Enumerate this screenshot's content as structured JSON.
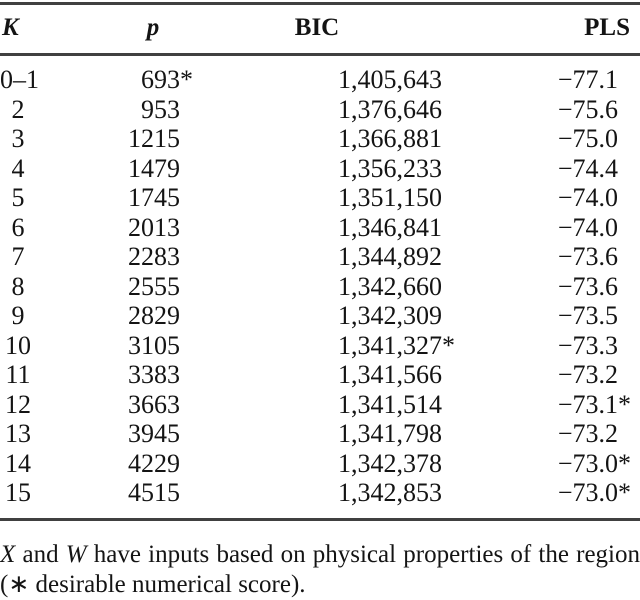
{
  "table": {
    "headers": {
      "k": "K",
      "p": "p",
      "bic": "BIC",
      "pls": "PLS"
    },
    "rows": [
      {
        "k": "0–1",
        "p": "693*",
        "bic": "1,405,643",
        "pls": "−77.1"
      },
      {
        "k": "2",
        "p": "953",
        "bic": "1,376,646",
        "pls": "−75.6"
      },
      {
        "k": "3",
        "p": "1215",
        "bic": "1,366,881",
        "pls": "−75.0"
      },
      {
        "k": "4",
        "p": "1479",
        "bic": "1,356,233",
        "pls": "−74.4"
      },
      {
        "k": "5",
        "p": "1745",
        "bic": "1,351,150",
        "pls": "−74.0"
      },
      {
        "k": "6",
        "p": "2013",
        "bic": "1,346,841",
        "pls": "−74.0"
      },
      {
        "k": "7",
        "p": "2283",
        "bic": "1,344,892",
        "pls": "−73.6"
      },
      {
        "k": "8",
        "p": "2555",
        "bic": "1,342,660",
        "pls": "−73.6"
      },
      {
        "k": "9",
        "p": "2829",
        "bic": "1,342,309",
        "pls": "−73.5"
      },
      {
        "k": "10",
        "p": "3105",
        "bic": "1,341,327*",
        "pls": "−73.3"
      },
      {
        "k": "11",
        "p": "3383",
        "bic": "1,341,566",
        "pls": "−73.2"
      },
      {
        "k": "12",
        "p": "3663",
        "bic": "1,341,514",
        "pls": "−73.1*"
      },
      {
        "k": "13",
        "p": "3945",
        "bic": "1,341,798",
        "pls": "−73.2"
      },
      {
        "k": "14",
        "p": "4229",
        "bic": "1,342,378",
        "pls": "−73.0*"
      },
      {
        "k": "15",
        "p": "4515",
        "bic": "1,342,853",
        "pls": "−73.0*"
      }
    ]
  },
  "footnote": {
    "var1": "X",
    "mid": "and",
    "var2": "W",
    "text1": "have inputs based on physical properties of the region",
    "line2": "(∗ desirable numerical score)."
  },
  "colors": {
    "text": "#141414",
    "rule": "#404040",
    "background": "#ffffff"
  }
}
